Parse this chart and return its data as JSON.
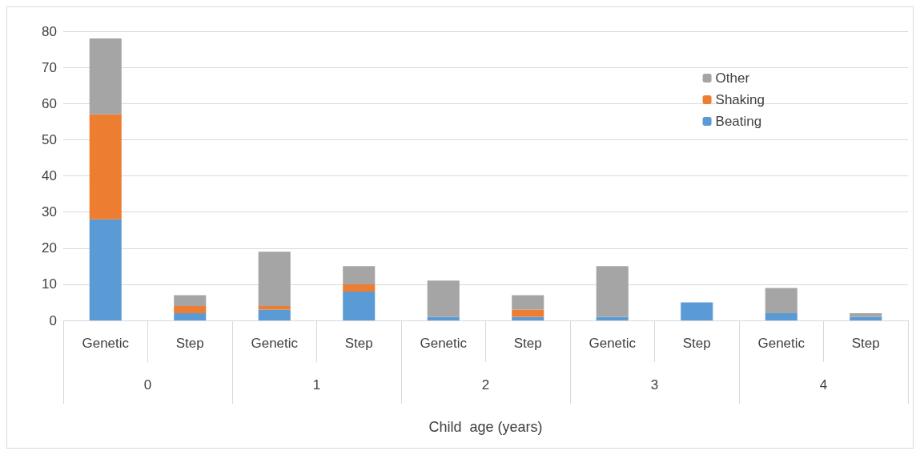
{
  "chart_data": {
    "type": "bar",
    "stacked": true,
    "xlabel": "Child  age (years)",
    "categories": [
      "Genetic",
      "Step",
      "Genetic",
      "Step",
      "Genetic",
      "Step",
      "Genetic",
      "Step",
      "Genetic",
      "Step"
    ],
    "annotations": [
      "0",
      "1",
      "2",
      "3",
      "4"
    ],
    "series": [
      {
        "name": "Beating",
        "color": "#5b9bd5",
        "values": [
          28,
          2,
          3,
          8,
          1,
          1,
          1,
          5,
          2,
          1
        ]
      },
      {
        "name": "Shaking",
        "color": "#ed7d31",
        "values": [
          29,
          2,
          1,
          2,
          0,
          2,
          0,
          0,
          0,
          0
        ]
      },
      {
        "name": "Other",
        "color": "#a5a5a5",
        "values": [
          21,
          3,
          15,
          5,
          10,
          4,
          14,
          0,
          7,
          1
        ]
      }
    ],
    "ylim": [
      0,
      80
    ],
    "yticks": [
      0,
      10,
      20,
      30,
      40,
      50,
      60,
      70,
      80
    ],
    "grid": "y",
    "legend": "top right"
  }
}
